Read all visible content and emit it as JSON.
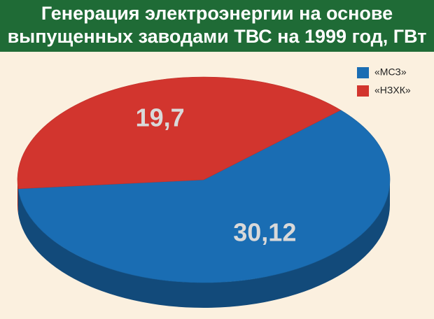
{
  "chart_data": {
    "type": "pie",
    "title": [
      "Генерация электроэнергии на основе",
      "выпущенных заводами ТВС на 1999 год, ГВт"
    ],
    "categories": [
      "«МСЗ»",
      "«НЗХК»"
    ],
    "values": [
      30.12,
      19.7
    ],
    "value_labels": [
      "30,12",
      "19,7"
    ],
    "colors": [
      "#1a6db3",
      "#d2352e"
    ],
    "legend": "upper right"
  }
}
